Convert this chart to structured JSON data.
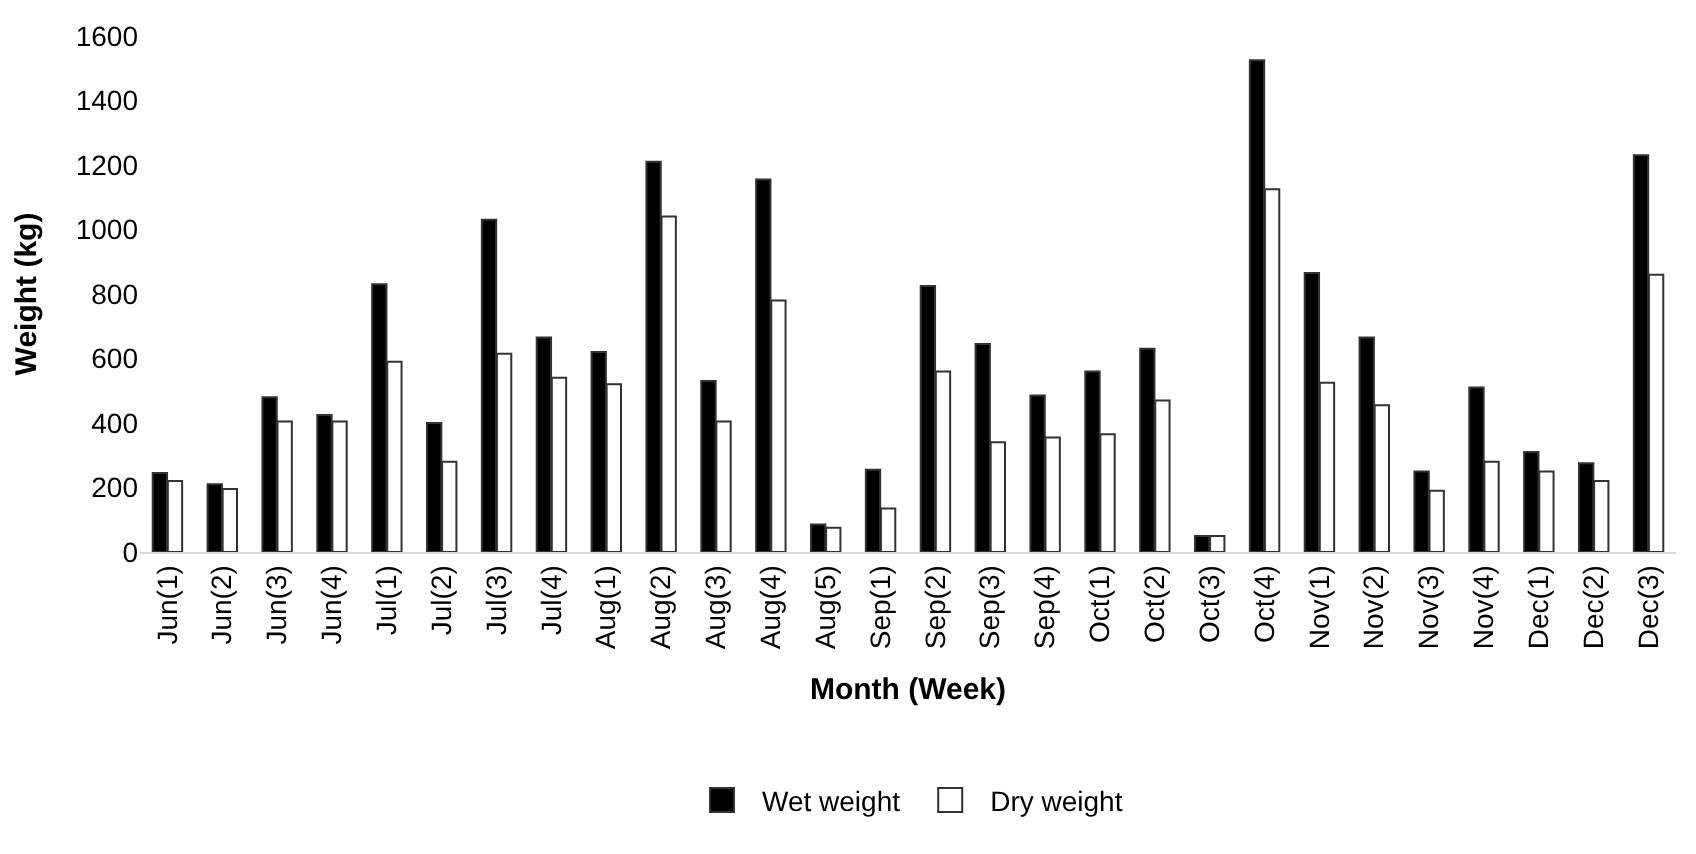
{
  "chart_data": {
    "type": "bar",
    "xlabel": "Month (Week)",
    "ylabel": "Weight (kg)",
    "categories": [
      "Jun(1)",
      "Jun(2)",
      "Jun(3)",
      "Jun(4)",
      "Jul(1)",
      "Jul(2)",
      "Jul(3)",
      "Jul(4)",
      "Aug(1)",
      "Aug(2)",
      "Aug(3)",
      "Aug(4)",
      "Aug(5)",
      "Sep(1)",
      "Sep(2)",
      "Sep(3)",
      "Sep(4)",
      "Oct(1)",
      "Oct(2)",
      "Oct(3)",
      "Oct(4)",
      "Nov(1)",
      "Nov(2)",
      "Nov(3)",
      "Nov(4)",
      "Dec(1)",
      "Dec(2)",
      "Dec(3)"
    ],
    "series": [
      {
        "name": "Wet weight",
        "color": "#000000",
        "values": [
          245,
          210,
          480,
          425,
          830,
          400,
          1030,
          665,
          620,
          1210,
          530,
          1155,
          85,
          255,
          825,
          645,
          485,
          560,
          630,
          50,
          1525,
          865,
          665,
          250,
          510,
          310,
          275,
          1230
        ]
      },
      {
        "name": "Dry weight",
        "color": "#ffffff",
        "values": [
          220,
          195,
          405,
          405,
          590,
          280,
          615,
          540,
          520,
          1040,
          405,
          780,
          75,
          135,
          560,
          340,
          355,
          365,
          470,
          50,
          1125,
          525,
          455,
          190,
          280,
          250,
          220,
          860
        ]
      }
    ],
    "ylim": [
      0,
      1600
    ],
    "yticks": [
      0,
      200,
      400,
      600,
      800,
      1000,
      1200,
      1400,
      1600
    ],
    "grid": false,
    "legend": "bottom"
  }
}
